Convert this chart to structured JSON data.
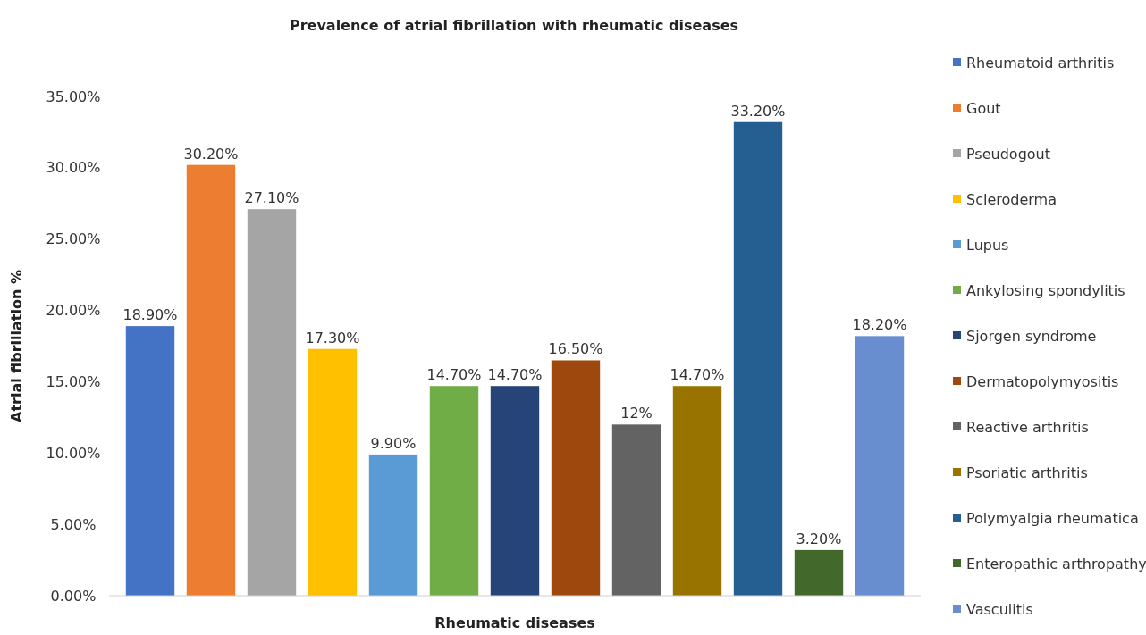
{
  "chart_data": {
    "type": "bar",
    "title": "Prevalence of atrial fibrillation with rheumatic diseases",
    "xlabel": "Rheumatic diseases",
    "ylabel": "Atrial fibrillation %",
    "categories": [
      null,
      null,
      null,
      null,
      null,
      null,
      null,
      null,
      null,
      null,
      null,
      null,
      null
    ],
    "series": [
      {
        "name": "Rheumatoid arthritis",
        "color": "#4472c4",
        "values": [
          18.9,
          null,
          null,
          null,
          null,
          null,
          null,
          null,
          null,
          null,
          null,
          null,
          null
        ],
        "value_labels": [
          "18.90%",
          null,
          null,
          null,
          null,
          null,
          null,
          null,
          null,
          null,
          null,
          null,
          null
        ]
      },
      {
        "name": "Gout",
        "color": "#ed7d31",
        "values": [
          null,
          30.2,
          null,
          null,
          null,
          null,
          null,
          null,
          null,
          null,
          null,
          null,
          null
        ],
        "value_labels": [
          null,
          "30.20%",
          null,
          null,
          null,
          null,
          null,
          null,
          null,
          null,
          null,
          null,
          null
        ]
      },
      {
        "name": "Pseudogout",
        "color": "#a5a5a5",
        "values": [
          null,
          null,
          27.1,
          null,
          null,
          null,
          null,
          null,
          null,
          null,
          null,
          null,
          null
        ],
        "value_labels": [
          null,
          null,
          "27.10%",
          null,
          null,
          null,
          null,
          null,
          null,
          null,
          null,
          null,
          null
        ]
      },
      {
        "name": "Scleroderma",
        "color": "#ffc000",
        "values": [
          null,
          null,
          null,
          17.3,
          null,
          null,
          null,
          null,
          null,
          null,
          null,
          null,
          null
        ],
        "value_labels": [
          null,
          null,
          null,
          "17.30%",
          null,
          null,
          null,
          null,
          null,
          null,
          null,
          null,
          null
        ]
      },
      {
        "name": "Lupus",
        "color": "#5b9bd5",
        "values": [
          null,
          null,
          null,
          null,
          9.9,
          null,
          null,
          null,
          null,
          null,
          null,
          null,
          null
        ],
        "value_labels": [
          null,
          null,
          null,
          null,
          "9.90%",
          null,
          null,
          null,
          null,
          null,
          null,
          null,
          null
        ]
      },
      {
        "name": "Ankylosing spondylitis",
        "color": "#70ad47",
        "values": [
          null,
          null,
          null,
          null,
          null,
          14.7,
          null,
          null,
          null,
          null,
          null,
          null,
          null
        ],
        "value_labels": [
          null,
          null,
          null,
          null,
          null,
          "14.70%",
          null,
          null,
          null,
          null,
          null,
          null,
          null
        ]
      },
      {
        "name": "Sjorgen syndrome",
        "color": "#264478",
        "values": [
          null,
          null,
          null,
          null,
          null,
          null,
          14.7,
          null,
          null,
          null,
          null,
          null,
          null
        ],
        "value_labels": [
          null,
          null,
          null,
          null,
          null,
          null,
          "14.70%",
          null,
          null,
          null,
          null,
          null,
          null
        ]
      },
      {
        "name": "Dermatopolymyositis",
        "color": "#9e480e",
        "values": [
          null,
          null,
          null,
          null,
          null,
          null,
          null,
          16.5,
          null,
          null,
          null,
          null,
          null
        ],
        "value_labels": [
          null,
          null,
          null,
          null,
          null,
          null,
          null,
          "16.50%",
          null,
          null,
          null,
          null,
          null
        ]
      },
      {
        "name": "Reactive arthritis",
        "color": "#636363",
        "values": [
          null,
          null,
          null,
          null,
          null,
          null,
          null,
          null,
          12,
          null,
          null,
          null,
          null
        ],
        "value_labels": [
          null,
          null,
          null,
          null,
          null,
          null,
          null,
          null,
          "12%",
          null,
          null,
          null,
          null
        ]
      },
      {
        "name": "Psoriatic arthritis",
        "color": "#997300",
        "values": [
          null,
          null,
          null,
          null,
          null,
          null,
          null,
          null,
          null,
          14.7,
          null,
          null,
          null
        ],
        "value_labels": [
          null,
          null,
          null,
          null,
          null,
          null,
          null,
          null,
          null,
          "14.70%",
          null,
          null,
          null
        ]
      },
      {
        "name": "Polymyalgia rheumatica",
        "color": "#255e91",
        "values": [
          null,
          null,
          null,
          null,
          null,
          null,
          null,
          null,
          null,
          null,
          33.2,
          null,
          null
        ],
        "value_labels": [
          null,
          null,
          null,
          null,
          null,
          null,
          null,
          null,
          null,
          null,
          "33.20%",
          null,
          null
        ]
      },
      {
        "name": "Enteropathic arthropathy",
        "color": "#43682b",
        "values": [
          null,
          null,
          null,
          null,
          null,
          null,
          null,
          null,
          null,
          null,
          null,
          3.2,
          null
        ],
        "value_labels": [
          null,
          null,
          null,
          null,
          null,
          null,
          null,
          null,
          null,
          null,
          null,
          "3.20%",
          null
        ]
      },
      {
        "name": "Vasculitis",
        "color": "#698ed0",
        "values": [
          null,
          null,
          null,
          null,
          null,
          null,
          null,
          null,
          null,
          null,
          null,
          null,
          18.2
        ],
        "value_labels": [
          null,
          null,
          null,
          null,
          null,
          null,
          null,
          null,
          null,
          null,
          null,
          null,
          "18.20%"
        ]
      }
    ],
    "ylim": [
      0,
      35
    ],
    "yticks": [
      {
        "value": 0,
        "label": "0.00%"
      },
      {
        "value": 5,
        "label": "5.00%"
      },
      {
        "value": 10,
        "label": "10.00%"
      },
      {
        "value": 15,
        "label": "15.00%"
      },
      {
        "value": 20,
        "label": "20.00%"
      },
      {
        "value": 25,
        "label": "25.00%"
      },
      {
        "value": 30,
        "label": "30.00%"
      },
      {
        "value": 35,
        "label": "35.00%"
      }
    ],
    "tick_labels": "y",
    "legend": "right"
  }
}
